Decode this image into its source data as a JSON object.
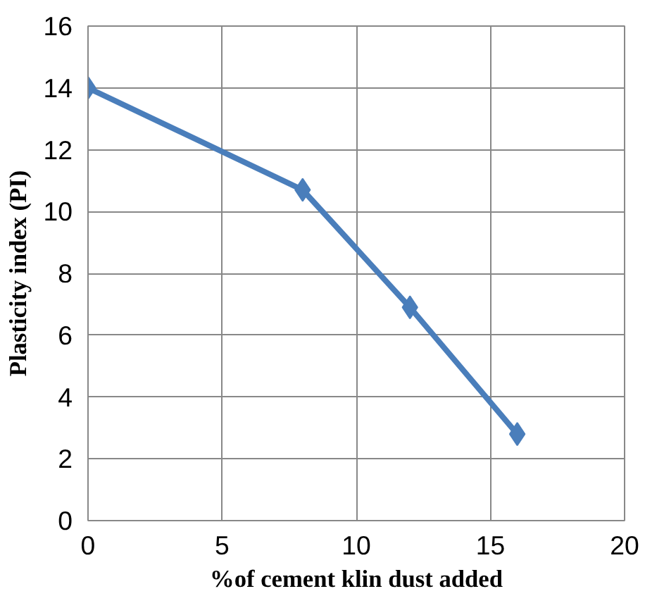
{
  "chart_data": {
    "type": "line",
    "xlabel": "%of cement klin dust added",
    "ylabel": "Plasticity index (PI)",
    "x": [
      0,
      8,
      12,
      16
    ],
    "series": [
      {
        "color": "#4a7ebb",
        "values": [
          14,
          10.7,
          6.9,
          2.8
        ]
      }
    ],
    "xlim": [
      0,
      20
    ],
    "xticks": [
      0,
      5,
      10,
      15,
      20
    ],
    "ylim": [
      0,
      16
    ],
    "yticks": [
      0,
      2,
      4,
      6,
      8,
      10,
      12,
      14,
      16
    ],
    "grid": true,
    "marker": "diamond",
    "line_style": "solid"
  }
}
